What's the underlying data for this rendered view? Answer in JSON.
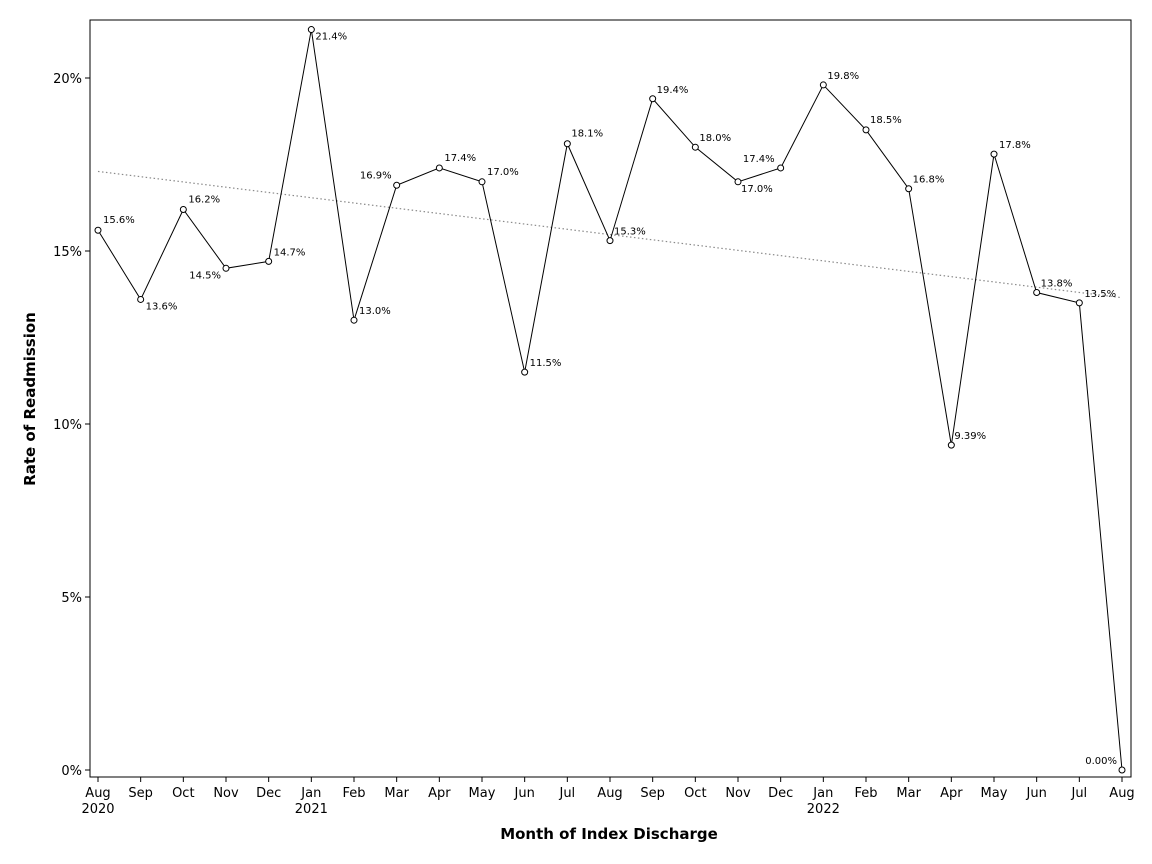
{
  "chart_data": {
    "type": "line",
    "title": "",
    "xlabel": "Month of Index Discharge",
    "ylabel": "Rate of Readmission",
    "ylim": [
      0,
      21.4
    ],
    "y_ticks": [
      {
        "value": 0,
        "label": "0%"
      },
      {
        "value": 5,
        "label": "5%"
      },
      {
        "value": 10,
        "label": "10%"
      },
      {
        "value": 15,
        "label": "15%"
      },
      {
        "value": 20,
        "label": "20%"
      }
    ],
    "grid": false,
    "legend": "none",
    "colors": {
      "line": "#000000",
      "trend": "#8a8a8a",
      "frame": "#000000"
    },
    "categories": [
      "Aug",
      "Sep",
      "Oct",
      "Nov",
      "Dec",
      "Jan",
      "Feb",
      "Mar",
      "Apr",
      "May",
      "Jun",
      "Jul",
      "Aug",
      "Sep",
      "Oct",
      "Nov",
      "Dec",
      "Jan",
      "Feb",
      "Mar",
      "Apr",
      "May",
      "Jun",
      "Jul",
      "Aug"
    ],
    "year_labels": {
      "0": "2020",
      "5": "2021",
      "17": "2022"
    },
    "series": [
      {
        "values": [
          15.6,
          13.6,
          16.2,
          14.5,
          14.7,
          21.4,
          13.0,
          16.9,
          17.4,
          17.0,
          11.5,
          18.1,
          15.3,
          19.4,
          18.0,
          17.0,
          17.4,
          19.8,
          18.5,
          16.8,
          9.39,
          17.8,
          13.8,
          13.5,
          0.0
        ],
        "labels": [
          "15.6%",
          "13.6%",
          "16.2%",
          "14.5%",
          "14.7%",
          "21.4%",
          "13.0%",
          "16.9%",
          "17.4%",
          "17.0%",
          "11.5%",
          "18.1%",
          "15.3%",
          "19.4%",
          "18.0%",
          "17.0%",
          "17.4%",
          "19.8%",
          "18.5%",
          "16.8%",
          "9.39%",
          "17.8%",
          "13.8%",
          "13.5%",
          "0.00%"
        ],
        "marker": "open-circle"
      }
    ],
    "trend_line": {
      "style": "dotted",
      "start": 17.3,
      "end": 13.65
    }
  }
}
